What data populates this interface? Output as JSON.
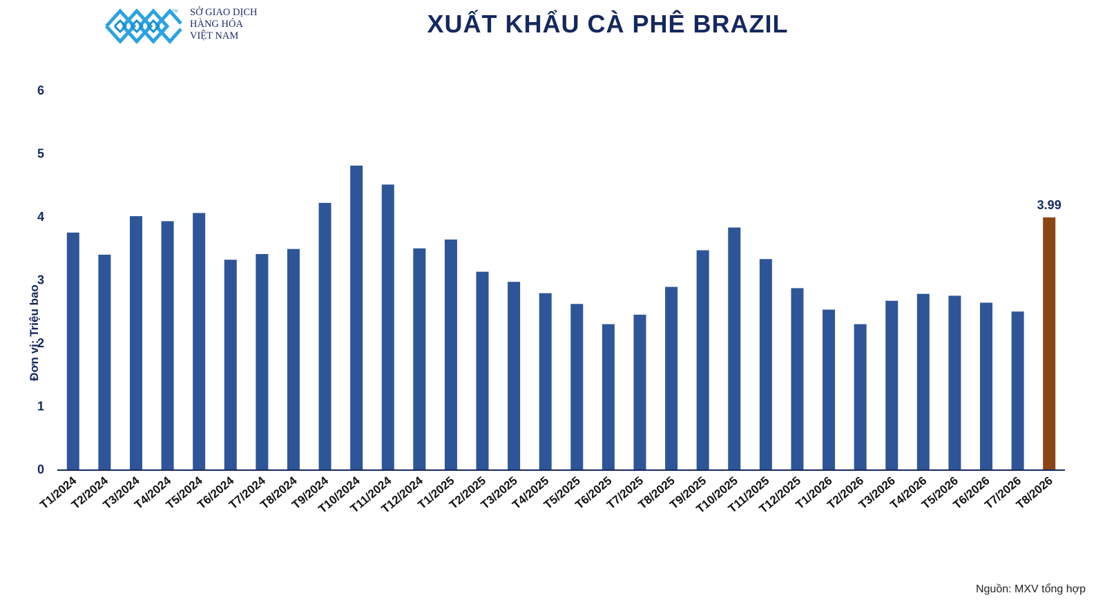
{
  "header": {
    "logo_lines": [
      "SỞ GIAO DỊCH",
      "HÀNG HÓA",
      "VIỆT NAM"
    ],
    "title": "XUẤT KHẨU CÀ PHÊ BRAZIL"
  },
  "footer": {
    "source": "Nguồn: MXV tổng hợp"
  },
  "chart_data": {
    "type": "bar",
    "title": "XUẤT KHẨU CÀ PHÊ BRAZIL",
    "xlabel": "",
    "ylabel": "Đơn vị: Triệu bao",
    "ylim": [
      0,
      6
    ],
    "yticks": [
      0,
      1,
      2,
      3,
      4,
      5,
      6
    ],
    "grid": false,
    "categories": [
      "T1/2024",
      "T2/2024",
      "T3/2024",
      "T4/2024",
      "T5/2024",
      "T6/2024",
      "T7/2024",
      "T8/2024",
      "T9/2024",
      "T10/2024",
      "T11/2024",
      "T12/2024",
      "T1/2025",
      "T2/2025",
      "T3/2025",
      "T4/2025",
      "T5/2025",
      "T6/2025",
      "T7/2025",
      "T8/2025",
      "T9/2025",
      "T10/2025",
      "T11/2025",
      "T12/2025",
      "T1/2026",
      "T2/2026",
      "T3/2026",
      "T4/2026",
      "T5/2026",
      "T6/2026",
      "T7/2026",
      "T8/2026"
    ],
    "values": [
      3.75,
      3.4,
      4.01,
      3.93,
      4.06,
      3.32,
      3.41,
      3.49,
      4.22,
      4.81,
      4.51,
      3.5,
      3.64,
      3.13,
      2.97,
      2.79,
      2.62,
      2.3,
      2.45,
      2.89,
      3.47,
      3.83,
      3.33,
      2.87,
      2.53,
      2.3,
      2.67,
      2.78,
      2.75,
      2.64,
      2.5,
      3.99
    ],
    "highlight_index": 31,
    "data_labels": [
      {
        "index": 31,
        "text": "3.99"
      }
    ],
    "colors": {
      "bar": "#2e5597",
      "highlight": "#8b4513",
      "axis": "#15285f"
    }
  }
}
